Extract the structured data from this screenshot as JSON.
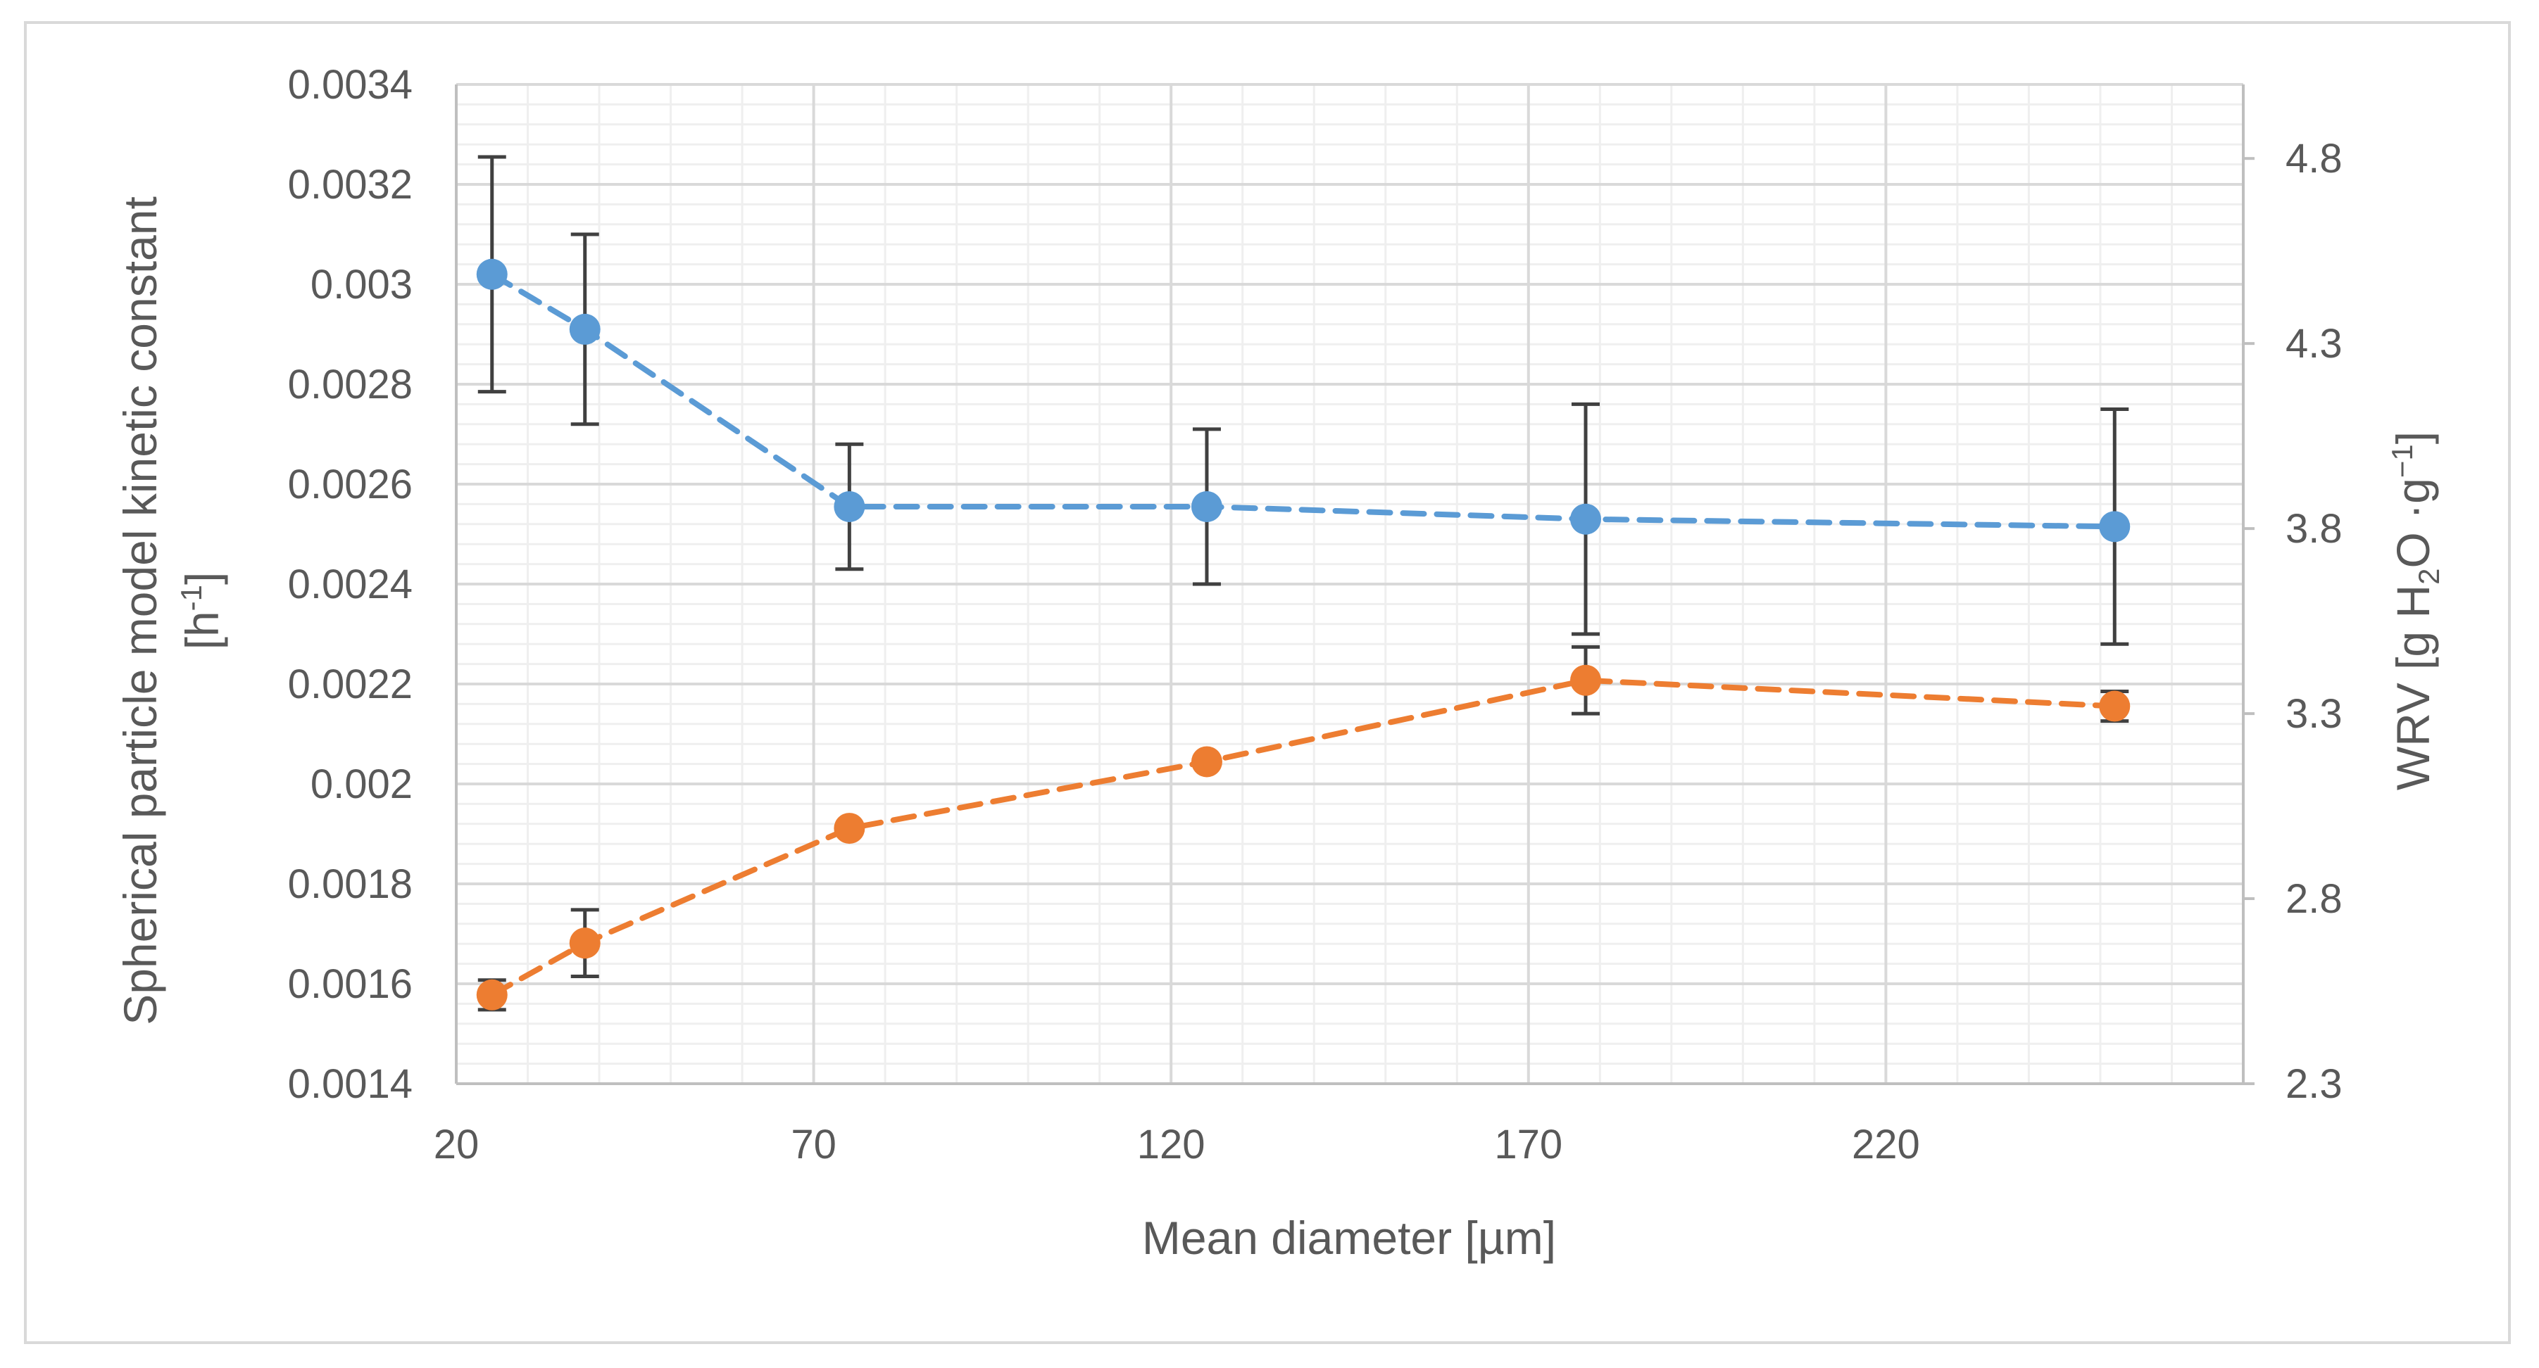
{
  "chart_data": {
    "type": "scatter",
    "title": "",
    "xlabel": "Mean diameter [µm]",
    "ylabel_left": "Spherical particle model kinetic constant",
    "ylabel_left_unit": "[h",
    "ylabel_left_unit_sup": "-1",
    "ylabel_left_unit_end": "]",
    "ylabel_right": {
      "prefix": "WRV [g H",
      "sub": "2",
      "mid": "O ·g",
      "sup": "−1",
      "suffix": "]"
    },
    "xlim": [
      20,
      270
    ],
    "x_ticks": [
      20,
      70,
      120,
      170,
      220
    ],
    "x_tick_labels": [
      "20",
      "70",
      "120",
      "170",
      "220"
    ],
    "ylim_left": [
      0.0014,
      0.0034
    ],
    "y_left_ticks": [
      0.0014,
      0.0016,
      0.0018,
      0.002,
      0.0022,
      0.0024,
      0.0026,
      0.0028,
      0.003,
      0.0032,
      0.0034
    ],
    "y_left_tick_labels": [
      "0.0014",
      "0.0016",
      "0.0018",
      "0.002",
      "0.0022",
      "0.0024",
      "0.0026",
      "0.0028",
      "0.003",
      "0.0032",
      "0.0034"
    ],
    "ylim_right": [
      2.3,
      5.0
    ],
    "y_right_ticks": [
      2.3,
      2.8,
      3.3,
      3.8,
      4.3,
      4.8
    ],
    "y_right_tick_labels": [
      "2.3",
      "2.8",
      "3.3",
      "3.8",
      "4.3",
      "4.8"
    ],
    "grid": true,
    "legend": "none",
    "series": [
      {
        "name": "Kinetic constant",
        "axis": "left",
        "color": "#5b9bd5",
        "x": [
          25,
          38,
          75,
          125,
          178,
          252
        ],
        "y": [
          0.00302,
          0.00291,
          0.002555,
          0.002555,
          0.00253,
          0.002515
        ],
        "err": [
          0.000235,
          0.00019,
          0.000125,
          0.000155,
          0.00023,
          0.000235
        ]
      },
      {
        "name": "WRV",
        "axis": "right",
        "color": "#ed7d31",
        "x": [
          25,
          38,
          75,
          125,
          178,
          252
        ],
        "y": [
          2.54,
          2.68,
          2.99,
          3.17,
          3.39,
          3.32
        ],
        "err": [
          0.04,
          0.09,
          0.0,
          0.0,
          0.09,
          0.04
        ]
      }
    ]
  }
}
